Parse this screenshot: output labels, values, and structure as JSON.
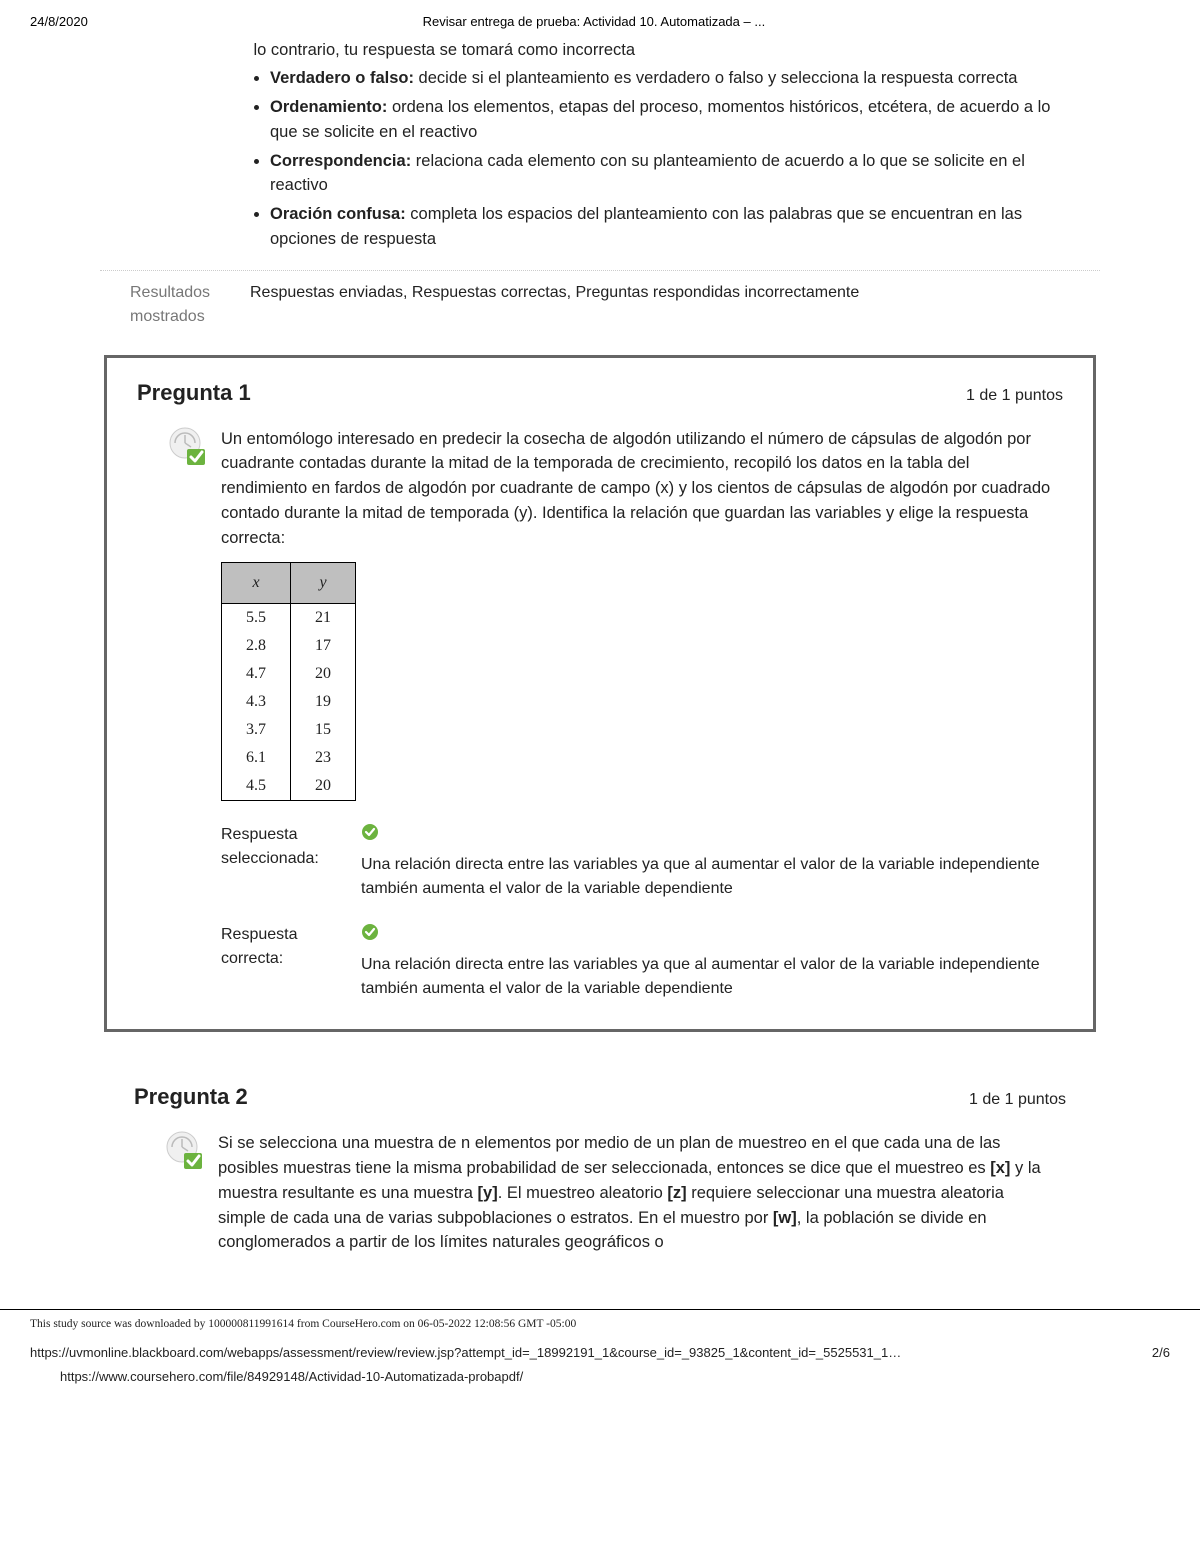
{
  "header": {
    "date": "24/8/2020",
    "title": "Revisar entrega de prueba: Actividad 10. Automatizada – ..."
  },
  "instructions": {
    "items": [
      {
        "prefix": "",
        "body": "lo contrario, tu respuesta se tomará como incorrecta"
      },
      {
        "prefix": "Verdadero o falso:",
        "body": " decide si el planteamiento es verdadero o falso y selecciona la respuesta correcta"
      },
      {
        "prefix": "Ordenamiento:",
        "body": " ordena los elementos, etapas del proceso, momentos históricos, etcétera, de acuerdo a lo que se solicite en el reactivo"
      },
      {
        "prefix": "Correspondencia:",
        "body": " relaciona cada elemento con su planteamiento de acuerdo a lo que se solicite en el reactivo"
      },
      {
        "prefix": "Oración confusa:",
        "body": " completa los espacios del planteamiento con las palabras que se encuentran en las opciones de respuesta"
      }
    ]
  },
  "results": {
    "label": "Resultados mostrados",
    "value": "Respuestas enviadas, Respuestas correctas, Preguntas respondidas incorrectamente"
  },
  "q1": {
    "title": "Pregunta 1",
    "points": "1 de 1 puntos",
    "text": "Un entomólogo interesado en predecir la cosecha de algodón utilizando el número de cápsulas de algodón por cuadrante contadas durante la mitad de la temporada de crecimiento, recopiló los datos en la tabla del rendimiento en fardos de algodón por cuadrante de campo (x) y los cientos de cápsulas de algodón por cuadrado contado durante la mitad de temporada (y). Identifica la relación que guardan las variables y elige la respuesta correcta:",
    "table": {
      "headers": [
        "x",
        "y"
      ],
      "rows": [
        [
          "5.5",
          "21"
        ],
        [
          "2.8",
          "17"
        ],
        [
          "4.7",
          "20"
        ],
        [
          "4.3",
          "19"
        ],
        [
          "3.7",
          "15"
        ],
        [
          "6.1",
          "23"
        ],
        [
          "4.5",
          "20"
        ]
      ]
    },
    "selected_label": "Respuesta seleccionada:",
    "selected_text": "Una relación directa entre las variables ya que al aumentar el valor de la variable independiente también aumenta el valor de la variable dependiente",
    "correct_label": "Respuesta correcta:",
    "correct_text": "Una relación directa entre las variables ya que al aumentar el valor de la variable independiente también aumenta el valor de la variable dependiente"
  },
  "q2": {
    "title": "Pregunta 2",
    "points": "1 de 1 puntos",
    "text": "Si se selecciona una muestra de n elementos por medio de un plan de muestreo en el que cada una de las posibles muestras tiene la misma probabilidad de ser seleccionada, entonces se dice que el muestreo es [x] y la muestra resultante es una muestra [y]. El muestreo aleatorio [z] requiere seleccionar una muestra aleatoria simple de cada una de varias subpoblaciones o estratos. En el muestro por [w], la población se divide en conglomerados a partir de los límites naturales geográficos o"
  },
  "footer": {
    "download": "This study source was downloaded by 100000811991614 from CourseHero.com on 06-05-2022 12:08:56 GMT -05:00",
    "url1": "https://uvmonline.blackboard.com/webapps/assessment/review/review.jsp?attempt_id=_18992191_1&course_id=_93825_1&content_id=_5525531_1…",
    "page": "2/6",
    "url2": "https://www.coursehero.com/file/84929148/Actividad-10-Automatizada-probapdf/"
  },
  "colors": {
    "check_green": "#6cb33f",
    "table_header_bg": "#bfbfbf"
  }
}
